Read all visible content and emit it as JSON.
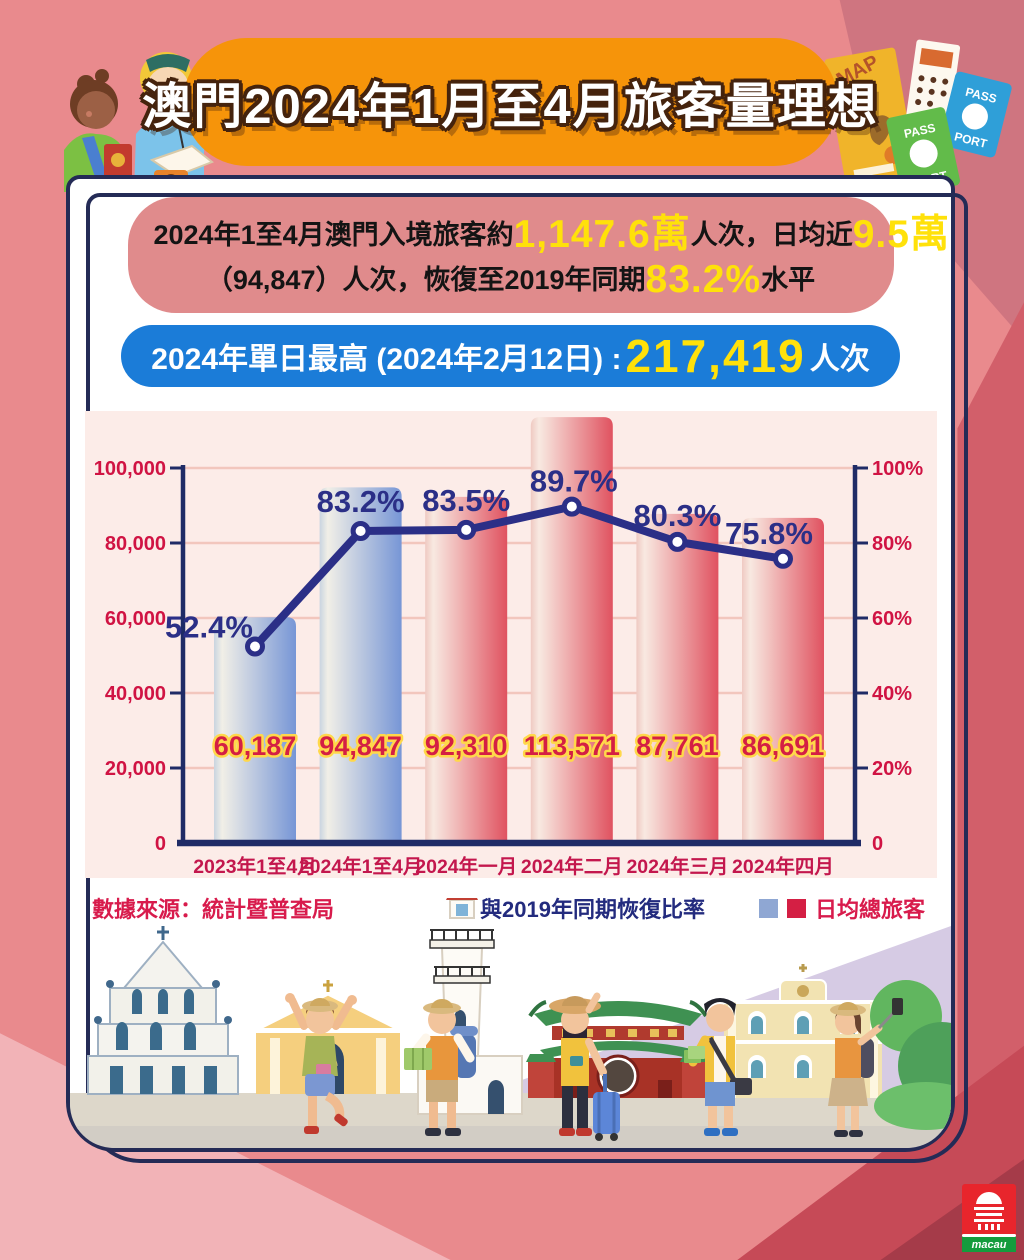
{
  "header": {
    "title": "澳門2024年1月至4月旅客量理想"
  },
  "summary": {
    "line1_t1": "2024年1至4月澳門入境旅客約",
    "line1_n1": "1,147.6萬",
    "line1_t2": "人次，日均近",
    "line1_n2": "9.5萬",
    "line2_t1": "（94,847）人次，恢復至2019年同期",
    "line2_n1": "83.2%",
    "line2_t2": "水平"
  },
  "record": {
    "label": "2024年單日最高 (2024年2月12日) : ",
    "number": "217,419",
    "suffix": "人次"
  },
  "source": "數據來源：統計暨普查局",
  "legend": {
    "line": "與2019年同期恢復比率",
    "bar": "日均總旅客"
  },
  "deco": {
    "map": "MAP",
    "pass": "PASS",
    "port": "PORT"
  },
  "logo_text": "macau",
  "chart_data": {
    "type": "bar",
    "categories": [
      "2023年1至4月",
      "2024年1至4月",
      "2024年一月",
      "2024年二月",
      "2024年三月",
      "2024年四月"
    ],
    "series": [
      {
        "name": "日均總旅客",
        "type": "bar",
        "values": [
          60187,
          94847,
          92310,
          113571,
          87761,
          86691
        ],
        "labels": [
          "60,187",
          "94,847",
          "92,310",
          "113,571",
          "87,761",
          "86,691"
        ],
        "palette": [
          "blue",
          "blue",
          "red",
          "red",
          "red",
          "red"
        ]
      },
      {
        "name": "與2019年同期恢復比率",
        "type": "line",
        "values": [
          52.4,
          83.2,
          83.5,
          89.7,
          80.3,
          75.8
        ],
        "labels": [
          "52.4%",
          "83.2%",
          "83.5%",
          "89.7%",
          "80.3%",
          "75.8%"
        ],
        "label_dx": [
          -46,
          0,
          0,
          2,
          0,
          -14
        ],
        "label_dy": [
          -9,
          -19,
          -19,
          -15,
          -16,
          -15
        ]
      }
    ],
    "left_axis": {
      "ticks": [
        "0",
        "20,000",
        "40,000",
        "60,000",
        "80,000",
        "100,000"
      ],
      "min": 0,
      "max": 100000
    },
    "right_axis": {
      "ticks": [
        "0",
        "20%",
        "40%",
        "60%",
        "80%",
        "100%"
      ],
      "min": 0,
      "max": 100
    },
    "legend_position": "bottom-right",
    "grid": true,
    "colors": {
      "bar_blue": [
        "#c9d4e0",
        "#f1efe7",
        "#7796d6"
      ],
      "bar_red": [
        "#efc9c2",
        "#f8e9e1",
        "#e05260"
      ],
      "line": "#2b2f87",
      "grid": "#f2c6bd",
      "axis": "#1f2b66",
      "tick_label": "#d01343",
      "x_label": "#c3174d",
      "bar_label_fill": "#d41f44",
      "bar_label_stroke": "#ffd84a"
    }
  }
}
